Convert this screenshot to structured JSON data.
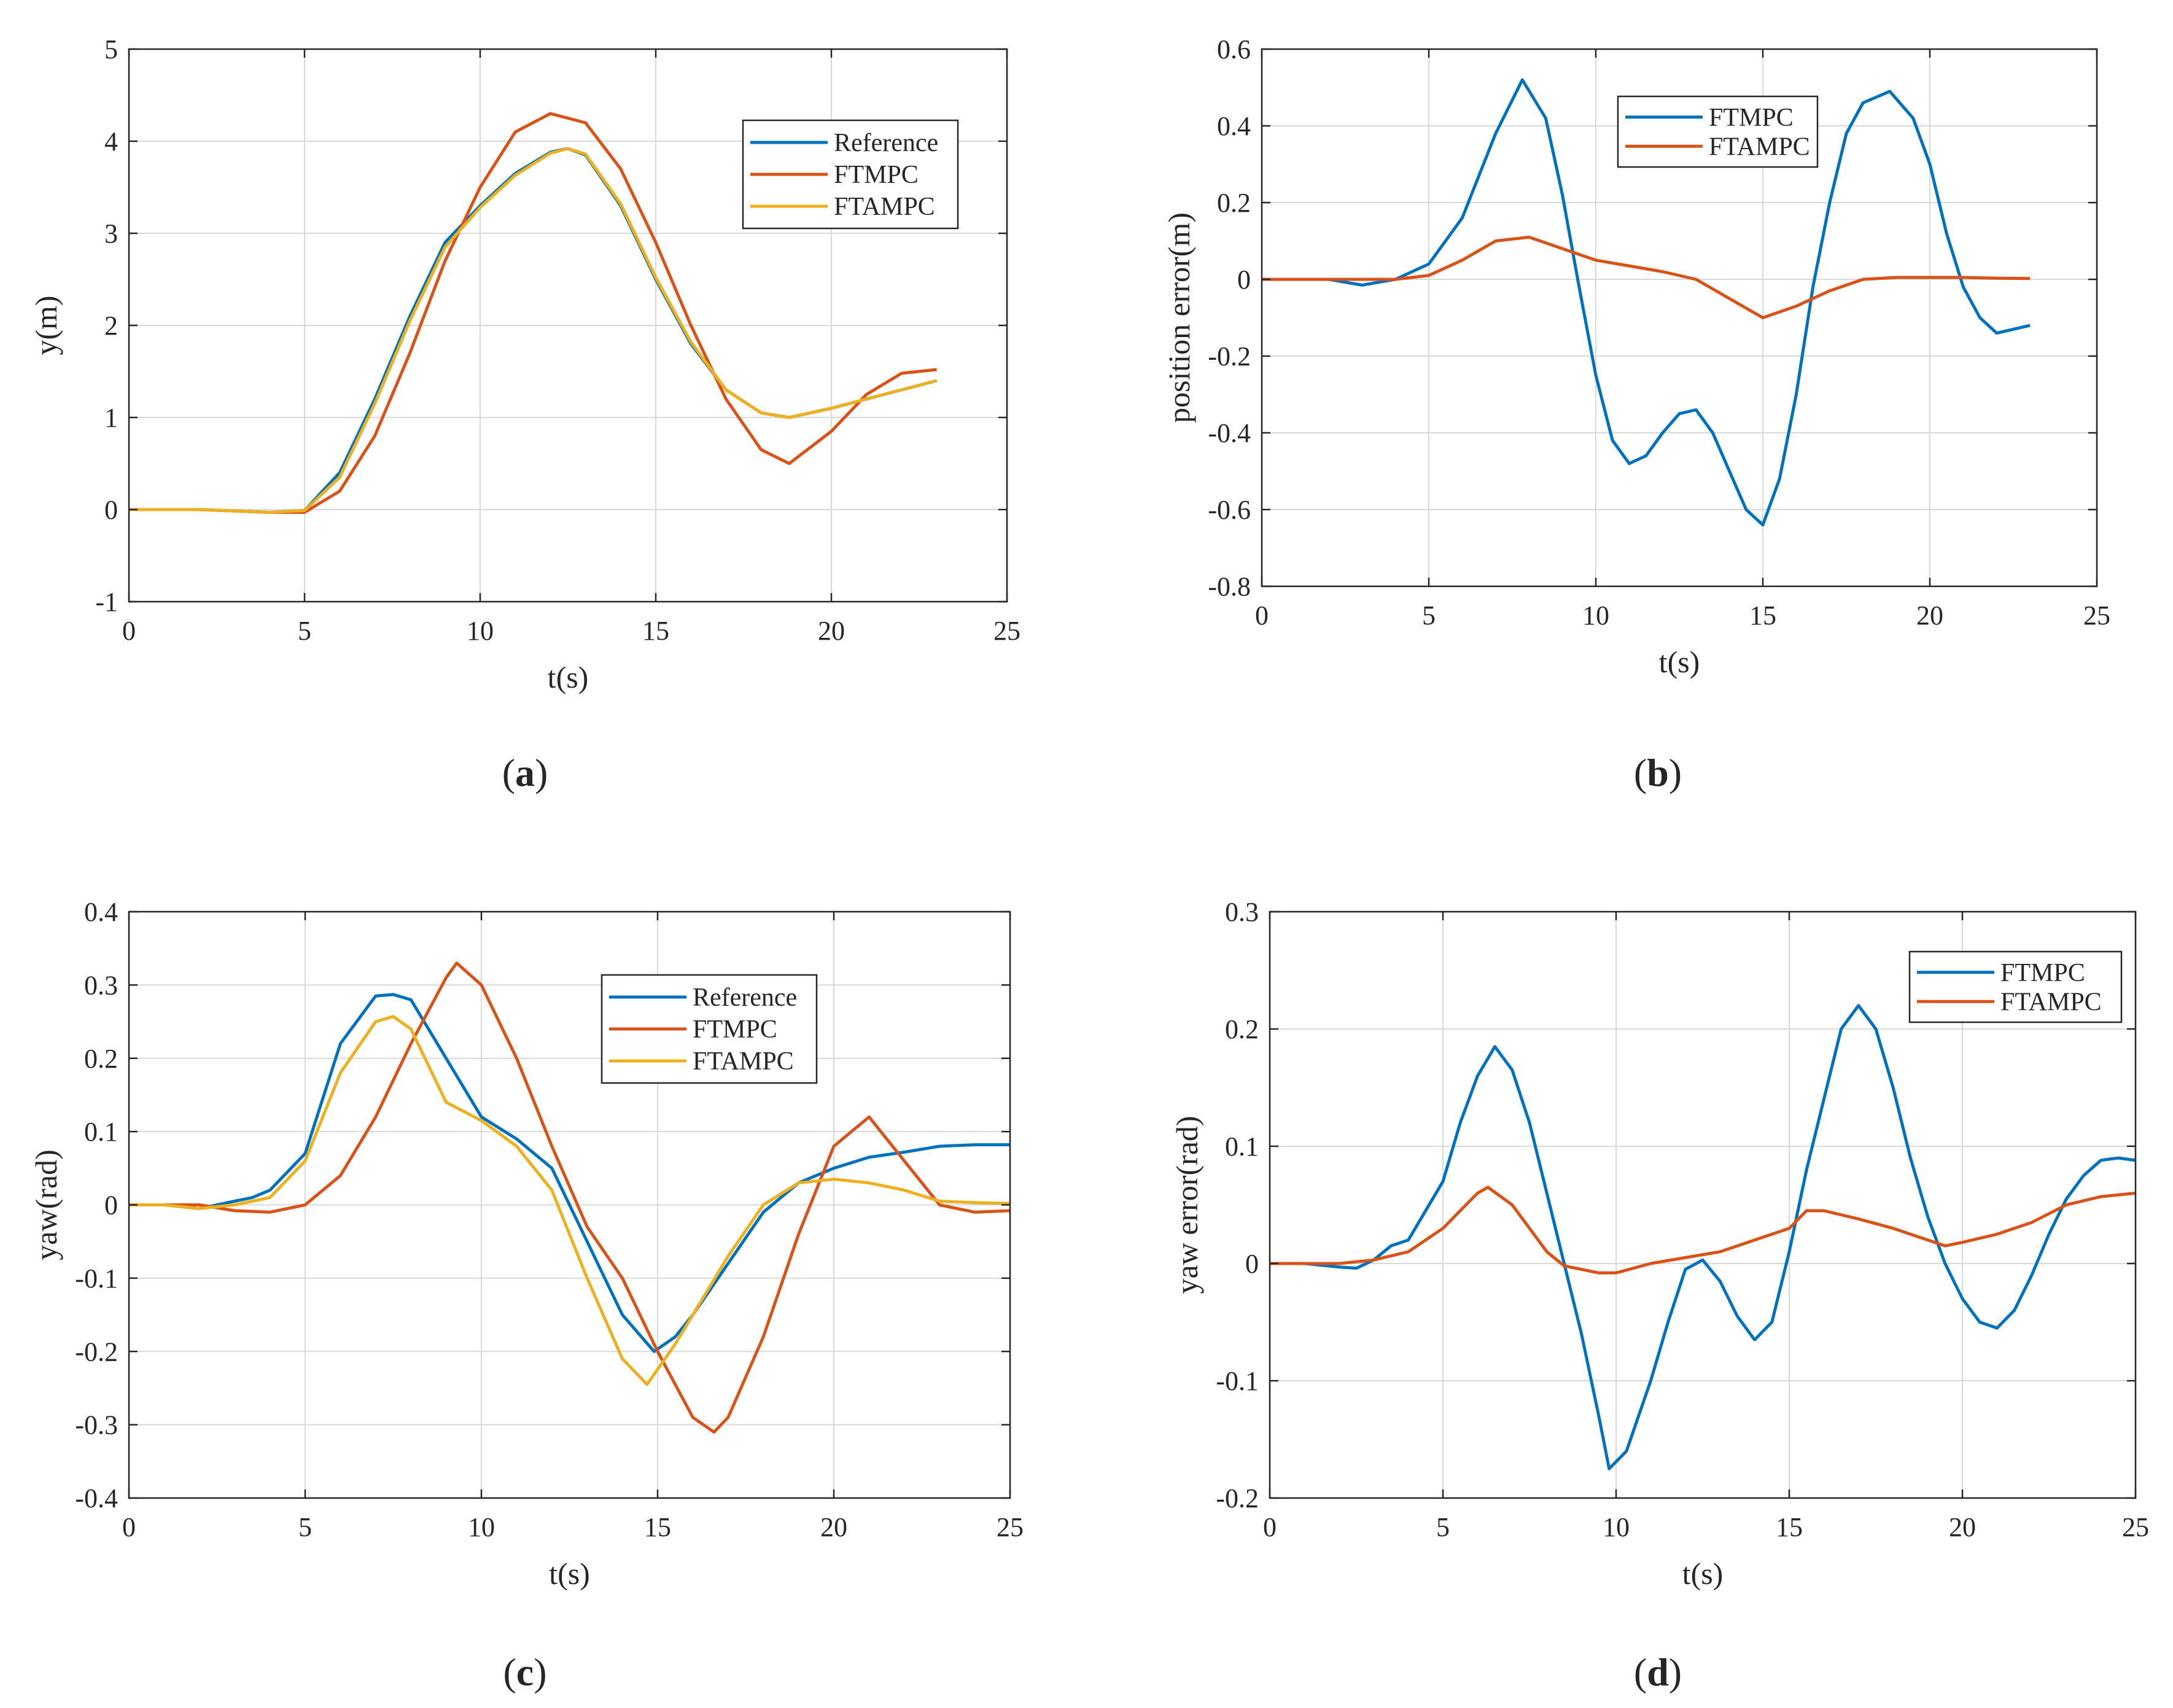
{
  "colors": {
    "reference": "#0072BD",
    "ftmpc": "#D95319",
    "ftampc": "#EDB120",
    "error_ftmpc": "#0072BD",
    "error_ftampc": "#D95319",
    "grid": "#d9d9d9",
    "axis": "#262626"
  },
  "chart_data": [
    {
      "id": "a",
      "type": "line",
      "caption": {
        "open": "(",
        "letter": "a",
        "close": ")"
      },
      "title": "",
      "xlabel": "t(s)",
      "ylabel": "y(m)",
      "xlim": [
        0,
        25
      ],
      "ylim": [
        -1,
        5
      ],
      "xticks": [
        0,
        5,
        10,
        15,
        20,
        25
      ],
      "xtick_labels": [
        "0",
        "5",
        "10",
        "15",
        "20",
        "25"
      ],
      "yticks": [
        -1,
        0,
        1,
        2,
        3,
        4,
        5
      ],
      "ytick_labels": [
        "-1",
        "0",
        "1",
        "2",
        "3",
        "4",
        "5"
      ],
      "grid": true,
      "legend": "top-right",
      "series": [
        {
          "name": "Reference",
          "color_key": "reference",
          "x": [
            0,
            2,
            4,
            5,
            6,
            7,
            8,
            9,
            10,
            11,
            12,
            12.5,
            13,
            14,
            15,
            16,
            17,
            18,
            18.8,
            20,
            21,
            22,
            23
          ],
          "y": [
            0,
            0,
            -0.03,
            -0.01,
            0.4,
            1.2,
            2.1,
            2.9,
            3.3,
            3.65,
            3.88,
            3.92,
            3.85,
            3.3,
            2.5,
            1.8,
            1.3,
            1.05,
            1.0,
            1.1,
            1.2,
            1.3,
            1.4
          ]
        },
        {
          "name": "FTMPC",
          "color_key": "ftmpc",
          "x": [
            0,
            2,
            4,
            5,
            6,
            7,
            8,
            9,
            10,
            11,
            12,
            13,
            14,
            15,
            16,
            17,
            18,
            18.8,
            20,
            21,
            22,
            23
          ],
          "y": [
            0,
            0,
            -0.03,
            -0.03,
            0.2,
            0.8,
            1.7,
            2.7,
            3.5,
            4.1,
            4.3,
            4.2,
            3.7,
            2.9,
            2.0,
            1.2,
            0.65,
            0.5,
            0.85,
            1.25,
            1.48,
            1.52
          ]
        },
        {
          "name": "FTAMPC",
          "color_key": "ftampc",
          "x": [
            0,
            2,
            4,
            5,
            6,
            7,
            8,
            9,
            10,
            11,
            12,
            12.5,
            13,
            14,
            15,
            16,
            17,
            18,
            18.8,
            20,
            21,
            22,
            23
          ],
          "y": [
            0,
            0,
            -0.03,
            -0.01,
            0.35,
            1.15,
            2.05,
            2.85,
            3.28,
            3.63,
            3.87,
            3.92,
            3.86,
            3.32,
            2.52,
            1.82,
            1.3,
            1.05,
            1.0,
            1.1,
            1.2,
            1.3,
            1.4
          ]
        }
      ]
    },
    {
      "id": "b",
      "type": "line",
      "caption": {
        "open": "(",
        "letter": "b",
        "close": ")"
      },
      "title": "",
      "xlabel": "t(s)",
      "ylabel": "position error(m)",
      "xlim": [
        0,
        25
      ],
      "ylim": [
        -0.8,
        0.6
      ],
      "xticks": [
        0,
        5,
        10,
        15,
        20,
        25
      ],
      "xtick_labels": [
        "0",
        "5",
        "10",
        "15",
        "20",
        "25"
      ],
      "yticks": [
        -0.8,
        -0.6,
        -0.4,
        -0.2,
        0,
        0.2,
        0.4,
        0.6
      ],
      "ytick_labels": [
        "-0.8",
        "-0.6",
        "-0.4",
        "-0.2",
        "0",
        "0.2",
        "0.4",
        "0.6"
      ],
      "grid": true,
      "legend": "top-center",
      "series": [
        {
          "name": "FTMPC",
          "color_key": "error_ftmpc",
          "x": [
            0,
            2,
            3,
            4,
            5,
            6,
            7,
            7.8,
            8.5,
            9,
            9.5,
            10,
            10.5,
            11,
            11.5,
            12,
            12.5,
            13,
            13.5,
            14,
            14.5,
            15,
            15.5,
            16,
            16.5,
            17,
            17.5,
            18,
            18.8,
            19.5,
            20,
            20.5,
            21,
            21.5,
            22,
            22.5,
            23
          ],
          "y": [
            0,
            0,
            -0.015,
            0,
            0.04,
            0.16,
            0.38,
            0.52,
            0.42,
            0.22,
            -0.02,
            -0.25,
            -0.42,
            -0.48,
            -0.46,
            -0.4,
            -0.35,
            -0.34,
            -0.4,
            -0.5,
            -0.6,
            -0.64,
            -0.52,
            -0.3,
            -0.02,
            0.2,
            0.38,
            0.46,
            0.49,
            0.42,
            0.3,
            0.12,
            -0.02,
            -0.1,
            -0.14,
            -0.13,
            -0.12
          ]
        },
        {
          "name": "FTAMPC",
          "color_key": "error_ftampc",
          "x": [
            0,
            2,
            4,
            5,
            6,
            7,
            8,
            9,
            10,
            11,
            12,
            13,
            14,
            15,
            16,
            17,
            18,
            19,
            20,
            21,
            22,
            23
          ],
          "y": [
            0,
            0,
            0,
            0.01,
            0.05,
            0.1,
            0.11,
            0.08,
            0.05,
            0.035,
            0.02,
            0,
            -0.05,
            -0.1,
            -0.07,
            -0.03,
            0,
            0.005,
            0.005,
            0.005,
            0.003,
            0.002
          ]
        }
      ]
    },
    {
      "id": "c",
      "type": "line",
      "caption": {
        "open": "(",
        "letter": "c",
        "close": ")"
      },
      "title": "",
      "xlabel": "t(s)",
      "ylabel": "yaw(rad)",
      "xlim": [
        0,
        25
      ],
      "ylim": [
        -0.4,
        0.4
      ],
      "xticks": [
        0,
        5,
        10,
        15,
        20,
        25
      ],
      "xtick_labels": [
        "0",
        "5",
        "10",
        "15",
        "20",
        "25"
      ],
      "yticks": [
        -0.4,
        -0.3,
        -0.2,
        -0.1,
        0,
        0.1,
        0.2,
        0.3,
        0.4
      ],
      "ytick_labels": [
        "-0.4",
        "-0.3",
        "-0.2",
        "-0.1",
        "0",
        "0.1",
        "0.2",
        "0.3",
        "0.4"
      ],
      "grid": true,
      "legend": "top-center",
      "series": [
        {
          "name": "Reference",
          "color_key": "reference",
          "x": [
            0,
            1,
            2,
            3,
            3.5,
            4,
            5,
            6,
            7,
            7.5,
            8,
            9,
            10,
            11,
            12,
            13,
            14,
            14.9,
            15.5,
            16,
            17,
            18,
            19,
            20,
            21,
            22,
            23,
            24,
            25
          ],
          "y": [
            0,
            0,
            -0.005,
            0.005,
            0.01,
            0.02,
            0.07,
            0.22,
            0.285,
            0.287,
            0.28,
            0.2,
            0.12,
            0.09,
            0.05,
            -0.05,
            -0.15,
            -0.2,
            -0.18,
            -0.15,
            -0.08,
            -0.01,
            0.03,
            0.05,
            0.065,
            0.072,
            0.08,
            0.082,
            0.082
          ]
        },
        {
          "name": "FTMPC",
          "color_key": "ftmpc",
          "x": [
            0,
            2,
            3,
            4,
            5,
            6,
            7,
            8,
            9,
            9.3,
            10,
            11,
            12,
            13,
            14,
            15,
            16,
            16.6,
            17,
            18,
            19,
            20,
            21,
            22,
            23,
            24,
            25
          ],
          "y": [
            0,
            0,
            -0.008,
            -0.01,
            0,
            0.04,
            0.12,
            0.22,
            0.31,
            0.33,
            0.3,
            0.2,
            0.08,
            -0.03,
            -0.1,
            -0.2,
            -0.29,
            -0.31,
            -0.29,
            -0.18,
            -0.04,
            0.08,
            0.12,
            0.06,
            0,
            -0.01,
            -0.008
          ]
        },
        {
          "name": "FTAMPC",
          "color_key": "ftampc",
          "x": [
            0,
            1,
            2,
            3,
            4,
            5,
            6,
            7,
            7.5,
            8,
            9,
            10,
            11,
            12,
            13,
            14,
            14.7,
            15.5,
            16,
            17,
            18,
            19,
            20,
            21,
            22,
            23,
            24,
            25
          ],
          "y": [
            0,
            0,
            -0.005,
            0,
            0.01,
            0.06,
            0.18,
            0.25,
            0.257,
            0.24,
            0.14,
            0.115,
            0.08,
            0.02,
            -0.1,
            -0.21,
            -0.245,
            -0.19,
            -0.15,
            -0.07,
            0,
            0.03,
            0.035,
            0.03,
            0.02,
            0.005,
            0.003,
            0.002
          ]
        }
      ]
    },
    {
      "id": "d",
      "type": "line",
      "caption": {
        "open": "(",
        "letter": "d",
        "close": ")"
      },
      "title": "",
      "xlabel": "t(s)",
      "ylabel": "yaw error(rad)",
      "xlim": [
        0,
        25
      ],
      "ylim": [
        -0.2,
        0.3
      ],
      "xticks": [
        0,
        5,
        10,
        15,
        20,
        25
      ],
      "xtick_labels": [
        "0",
        "5",
        "10",
        "15",
        "20",
        "25"
      ],
      "yticks": [
        -0.2,
        -0.1,
        0,
        0.1,
        0.2,
        0.3
      ],
      "ytick_labels": [
        "-0.2",
        "-0.1",
        "0",
        "0.1",
        "0.2",
        "0.3"
      ],
      "grid": true,
      "legend": "top-right",
      "series": [
        {
          "name": "FTMPC",
          "color_key": "error_ftmpc",
          "x": [
            0,
            1,
            2,
            2.5,
            3,
            3.5,
            4,
            5,
            5.5,
            6,
            6.5,
            7,
            7.5,
            8,
            8.5,
            9,
            9.5,
            9.8,
            10.3,
            11,
            11.5,
            12,
            12.5,
            13,
            13.5,
            14,
            14.5,
            15,
            15.5,
            16,
            16.5,
            17,
            17.5,
            18,
            18.5,
            19,
            19.5,
            20,
            20.5,
            21,
            21.5,
            22,
            22.5,
            23,
            23.5,
            24,
            24.5,
            25
          ],
          "y": [
            0,
            0,
            -0.003,
            -0.004,
            0.003,
            0.015,
            0.02,
            0.07,
            0.12,
            0.16,
            0.185,
            0.165,
            0.12,
            0.06,
            0,
            -0.06,
            -0.13,
            -0.175,
            -0.16,
            -0.1,
            -0.05,
            -0.005,
            0.003,
            -0.015,
            -0.045,
            -0.065,
            -0.05,
            0.01,
            0.08,
            0.14,
            0.2,
            0.22,
            0.2,
            0.15,
            0.09,
            0.04,
            0,
            -0.03,
            -0.05,
            -0.055,
            -0.04,
            -0.01,
            0.025,
            0.055,
            0.075,
            0.088,
            0.09,
            0.088
          ]
        },
        {
          "name": "FTAMPC",
          "color_key": "error_ftampc",
          "x": [
            0,
            1,
            2,
            3,
            4,
            5,
            5.5,
            6,
            6.3,
            7,
            7.5,
            8,
            8.5,
            9,
            9.5,
            10,
            11,
            12,
            13,
            14,
            15,
            15.5,
            16,
            17,
            18,
            19,
            19.5,
            20,
            21,
            22,
            23,
            24,
            25
          ],
          "y": [
            0,
            0,
            0,
            0.003,
            0.01,
            0.03,
            0.045,
            0.06,
            0.065,
            0.05,
            0.03,
            0.01,
            -0.002,
            -0.005,
            -0.008,
            -0.008,
            0,
            0.005,
            0.01,
            0.02,
            0.03,
            0.045,
            0.045,
            0.038,
            0.03,
            0.02,
            0.015,
            0.018,
            0.025,
            0.035,
            0.05,
            0.057,
            0.06
          ]
        }
      ]
    }
  ]
}
